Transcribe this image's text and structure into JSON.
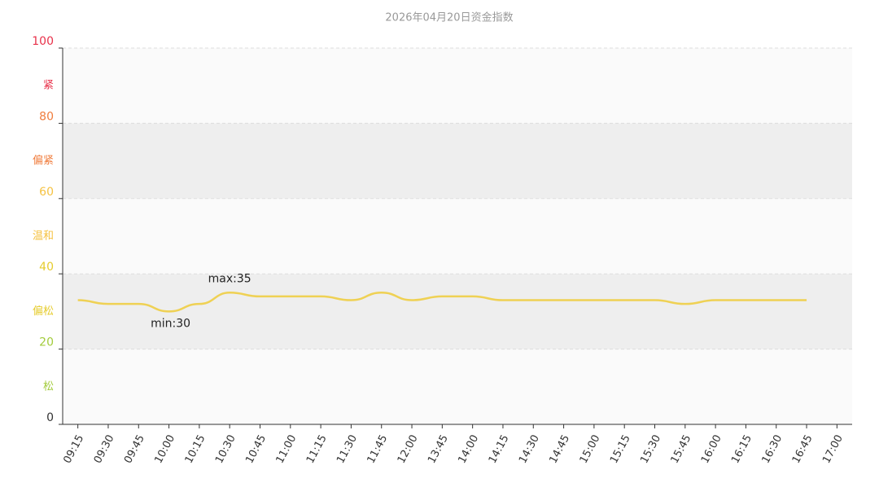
{
  "chart_data": {
    "type": "line",
    "title": "2026年04月20日资金指数",
    "categories": [
      "09:15",
      "09:30",
      "09:45",
      "10:00",
      "10:15",
      "10:30",
      "10:45",
      "11:00",
      "11:15",
      "11:30",
      "11:45",
      "12:00",
      "13:45",
      "14:00",
      "14:15",
      "14:30",
      "14:45",
      "15:00",
      "15:15",
      "15:30",
      "15:45",
      "16:00",
      "16:15",
      "16:30",
      "16:45",
      "17:00"
    ],
    "values": [
      33,
      32,
      32,
      30,
      32,
      35,
      34,
      34,
      34,
      33,
      35,
      33,
      34,
      34,
      33,
      33,
      33,
      33,
      33,
      33,
      32,
      33,
      33,
      33,
      33,
      null
    ],
    "color": "#efd154",
    "smooth": true,
    "ylim": [
      0,
      100
    ],
    "yticks": [
      0,
      20,
      40,
      60,
      80,
      100
    ],
    "ytick_colors": [
      "#333333",
      "#a3cc3c",
      "#e6cc2e",
      "#f5c242",
      "#f07c3c",
      "#e8314a"
    ],
    "grid": true,
    "zones": [
      {
        "label": "松",
        "from": 0,
        "to": 20,
        "color": "#a3cc3c",
        "fill": "#fafafa"
      },
      {
        "label": "偏松",
        "from": 20,
        "to": 40,
        "color": "#e6cc2e",
        "fill": "#eeeeee"
      },
      {
        "label": "温和",
        "from": 40,
        "to": 60,
        "color": "#f5c242",
        "fill": "#fafafa"
      },
      {
        "label": "偏紧",
        "from": 60,
        "to": 80,
        "color": "#f07c3c",
        "fill": "#eeeeee"
      },
      {
        "label": "紧",
        "from": 80,
        "to": 100,
        "color": "#e8314a",
        "fill": "#fafafa"
      }
    ],
    "annotations": [
      {
        "label": "max:35",
        "value": 35,
        "position": "above"
      },
      {
        "label": "min:30",
        "value": 30,
        "position": "below"
      }
    ]
  }
}
